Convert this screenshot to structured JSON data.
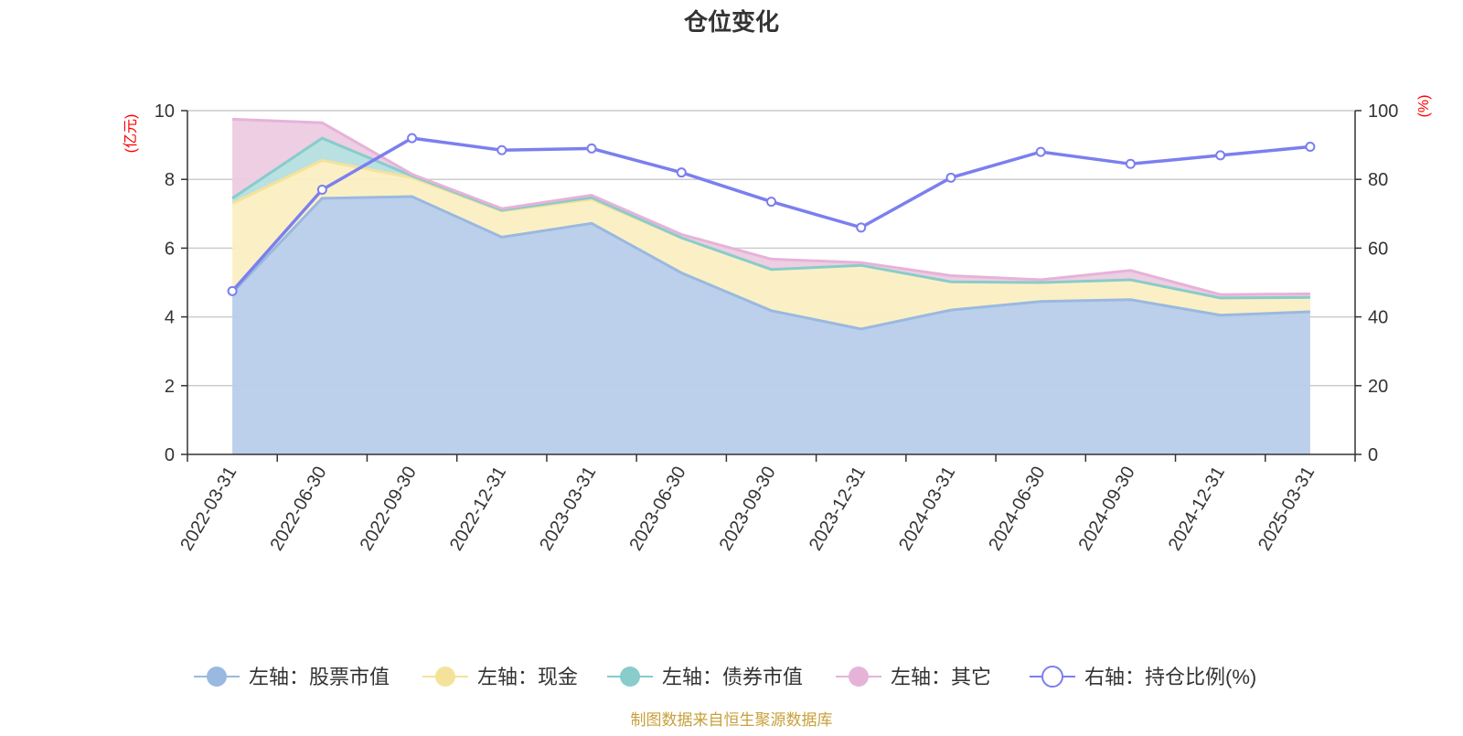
{
  "chart_data": {
    "type": "area",
    "title": "仓位变化",
    "left_axis": {
      "unit": "(亿元)",
      "ylim": [
        0,
        10
      ],
      "ticks": [
        0,
        2,
        4,
        6,
        8,
        10
      ]
    },
    "right_axis": {
      "unit": "(%)",
      "ylim": [
        0,
        100
      ],
      "ticks": [
        0,
        20,
        40,
        60,
        80,
        100
      ]
    },
    "categories": [
      "2022-03-31",
      "2022-06-30",
      "2022-09-30",
      "2022-12-31",
      "2023-03-31",
      "2023-06-30",
      "2023-09-30",
      "2023-12-31",
      "2024-03-31",
      "2024-06-30",
      "2024-09-30",
      "2024-12-31",
      "2025-03-31"
    ],
    "stacked_series": [
      {
        "name": "左轴：股票市值",
        "color": "#9ab9e0",
        "fill": "#b8cdea",
        "values": [
          4.7,
          7.45,
          7.5,
          6.32,
          6.72,
          5.28,
          4.18,
          3.65,
          4.2,
          4.45,
          4.5,
          4.05,
          4.15
        ]
      },
      {
        "name": "左轴：现金",
        "color": "#f5e29a",
        "fill": "#fbefc2",
        "values": [
          2.6,
          1.1,
          0.55,
          0.76,
          0.7,
          1.02,
          1.2,
          1.85,
          0.82,
          0.55,
          0.58,
          0.5,
          0.42
        ]
      },
      {
        "name": "左轴：债券市值",
        "color": "#88cccc",
        "fill": "#b5dfdf",
        "values": [
          0.15,
          0.65,
          0.05,
          0.02,
          0.05,
          0.0,
          0.0,
          0.0,
          0.0,
          0.0,
          0.0,
          0.0,
          0.0
        ]
      },
      {
        "name": "左轴：其它",
        "color": "#e6b3d8",
        "fill": "#eccbe2",
        "values": [
          2.3,
          0.45,
          0.05,
          0.05,
          0.07,
          0.1,
          0.3,
          0.08,
          0.18,
          0.08,
          0.27,
          0.1,
          0.1
        ]
      }
    ],
    "line_series": {
      "name": "右轴：持仓比例(%)",
      "color": "#7b7fee",
      "values": [
        47.5,
        77,
        92,
        88.5,
        89,
        82,
        73.5,
        66,
        80.5,
        88,
        84.5,
        87,
        89.5
      ]
    },
    "grid": true,
    "legend_position": "bottom"
  },
  "source_note": "制图数据来自恒生聚源数据库"
}
